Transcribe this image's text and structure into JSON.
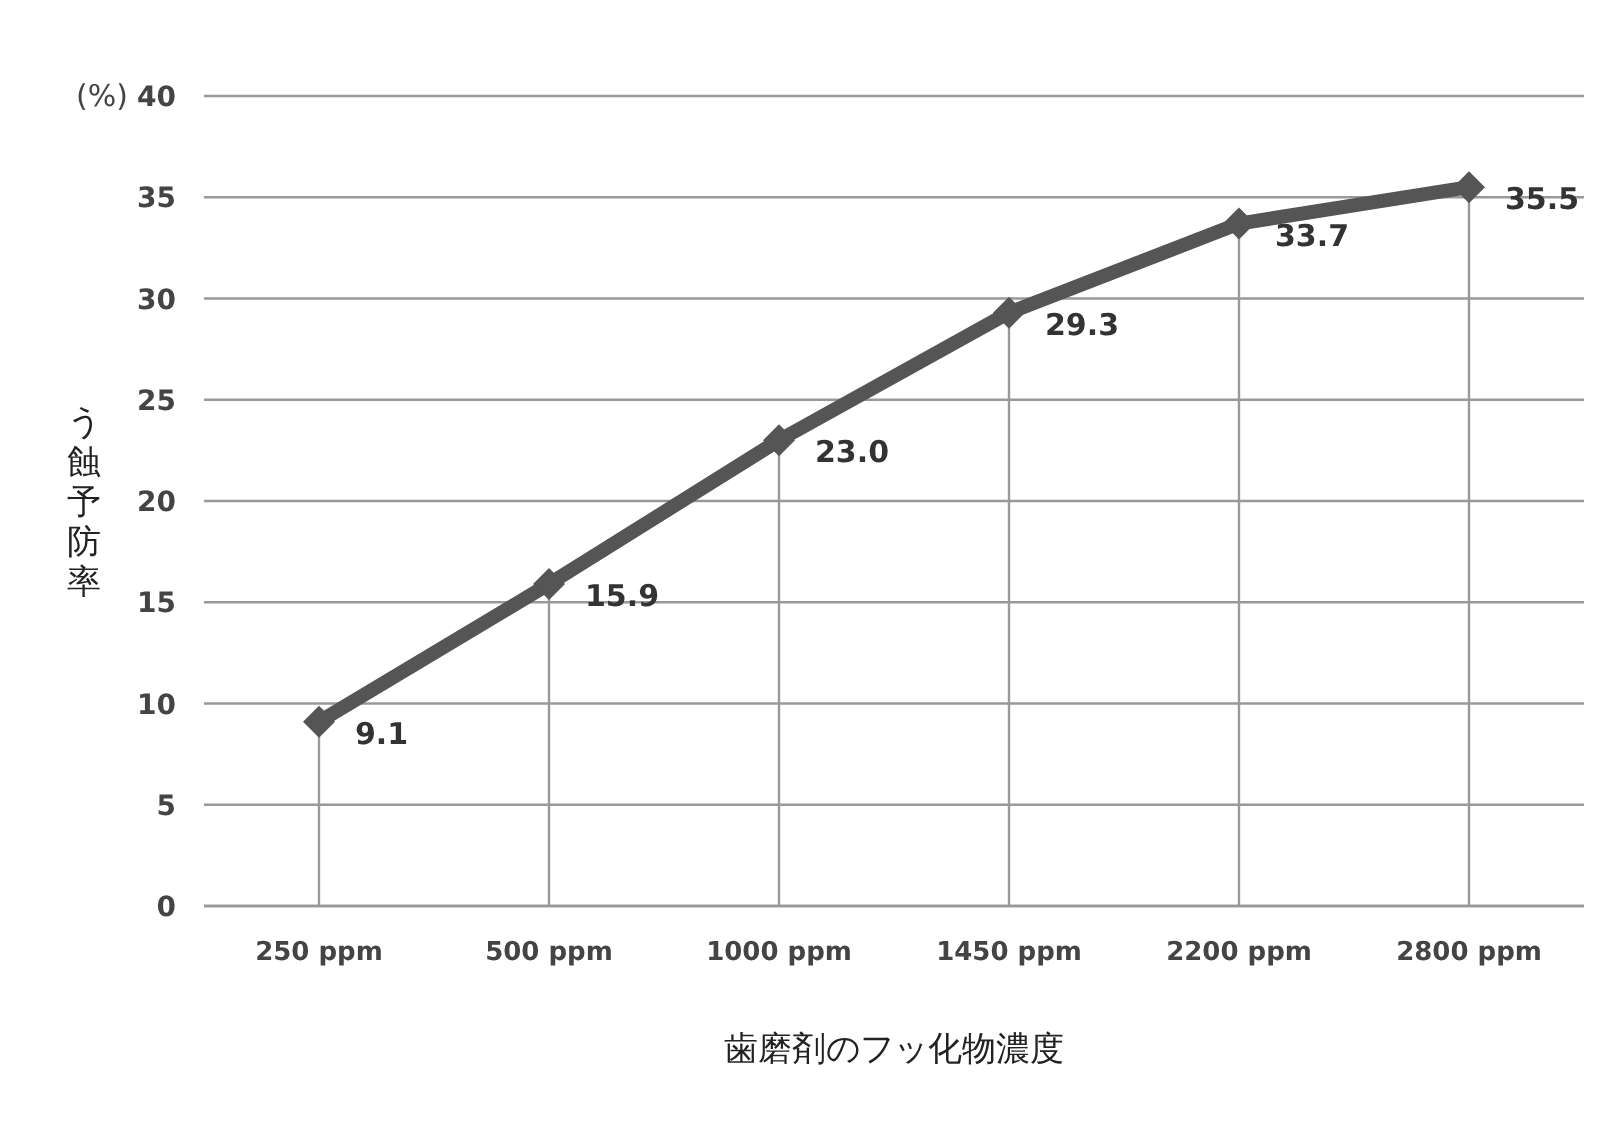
{
  "chart_data": {
    "type": "line",
    "ylabel": "う蝕予防率",
    "xlabel": "歯磨剤のフッ化物濃度",
    "annotations": [
      "(%)"
    ],
    "categories": [
      "250 ppm",
      "500 ppm",
      "1000 ppm",
      "1450 ppm",
      "2200 ppm",
      "2800 ppm"
    ],
    "series": [
      {
        "color": "#555555",
        "values": [
          9.1,
          15.9,
          23.0,
          29.3,
          33.7,
          35.5
        ],
        "value_labels": [
          "9.1",
          "15.9",
          "23.0",
          "29.3",
          "33.7",
          "35.5"
        ]
      }
    ],
    "ylim": [
      0,
      40
    ],
    "yticks": [
      0,
      5,
      10,
      15,
      20,
      25,
      30,
      35,
      40
    ],
    "grid": true,
    "marker": "diamond",
    "line_style": "solid"
  }
}
